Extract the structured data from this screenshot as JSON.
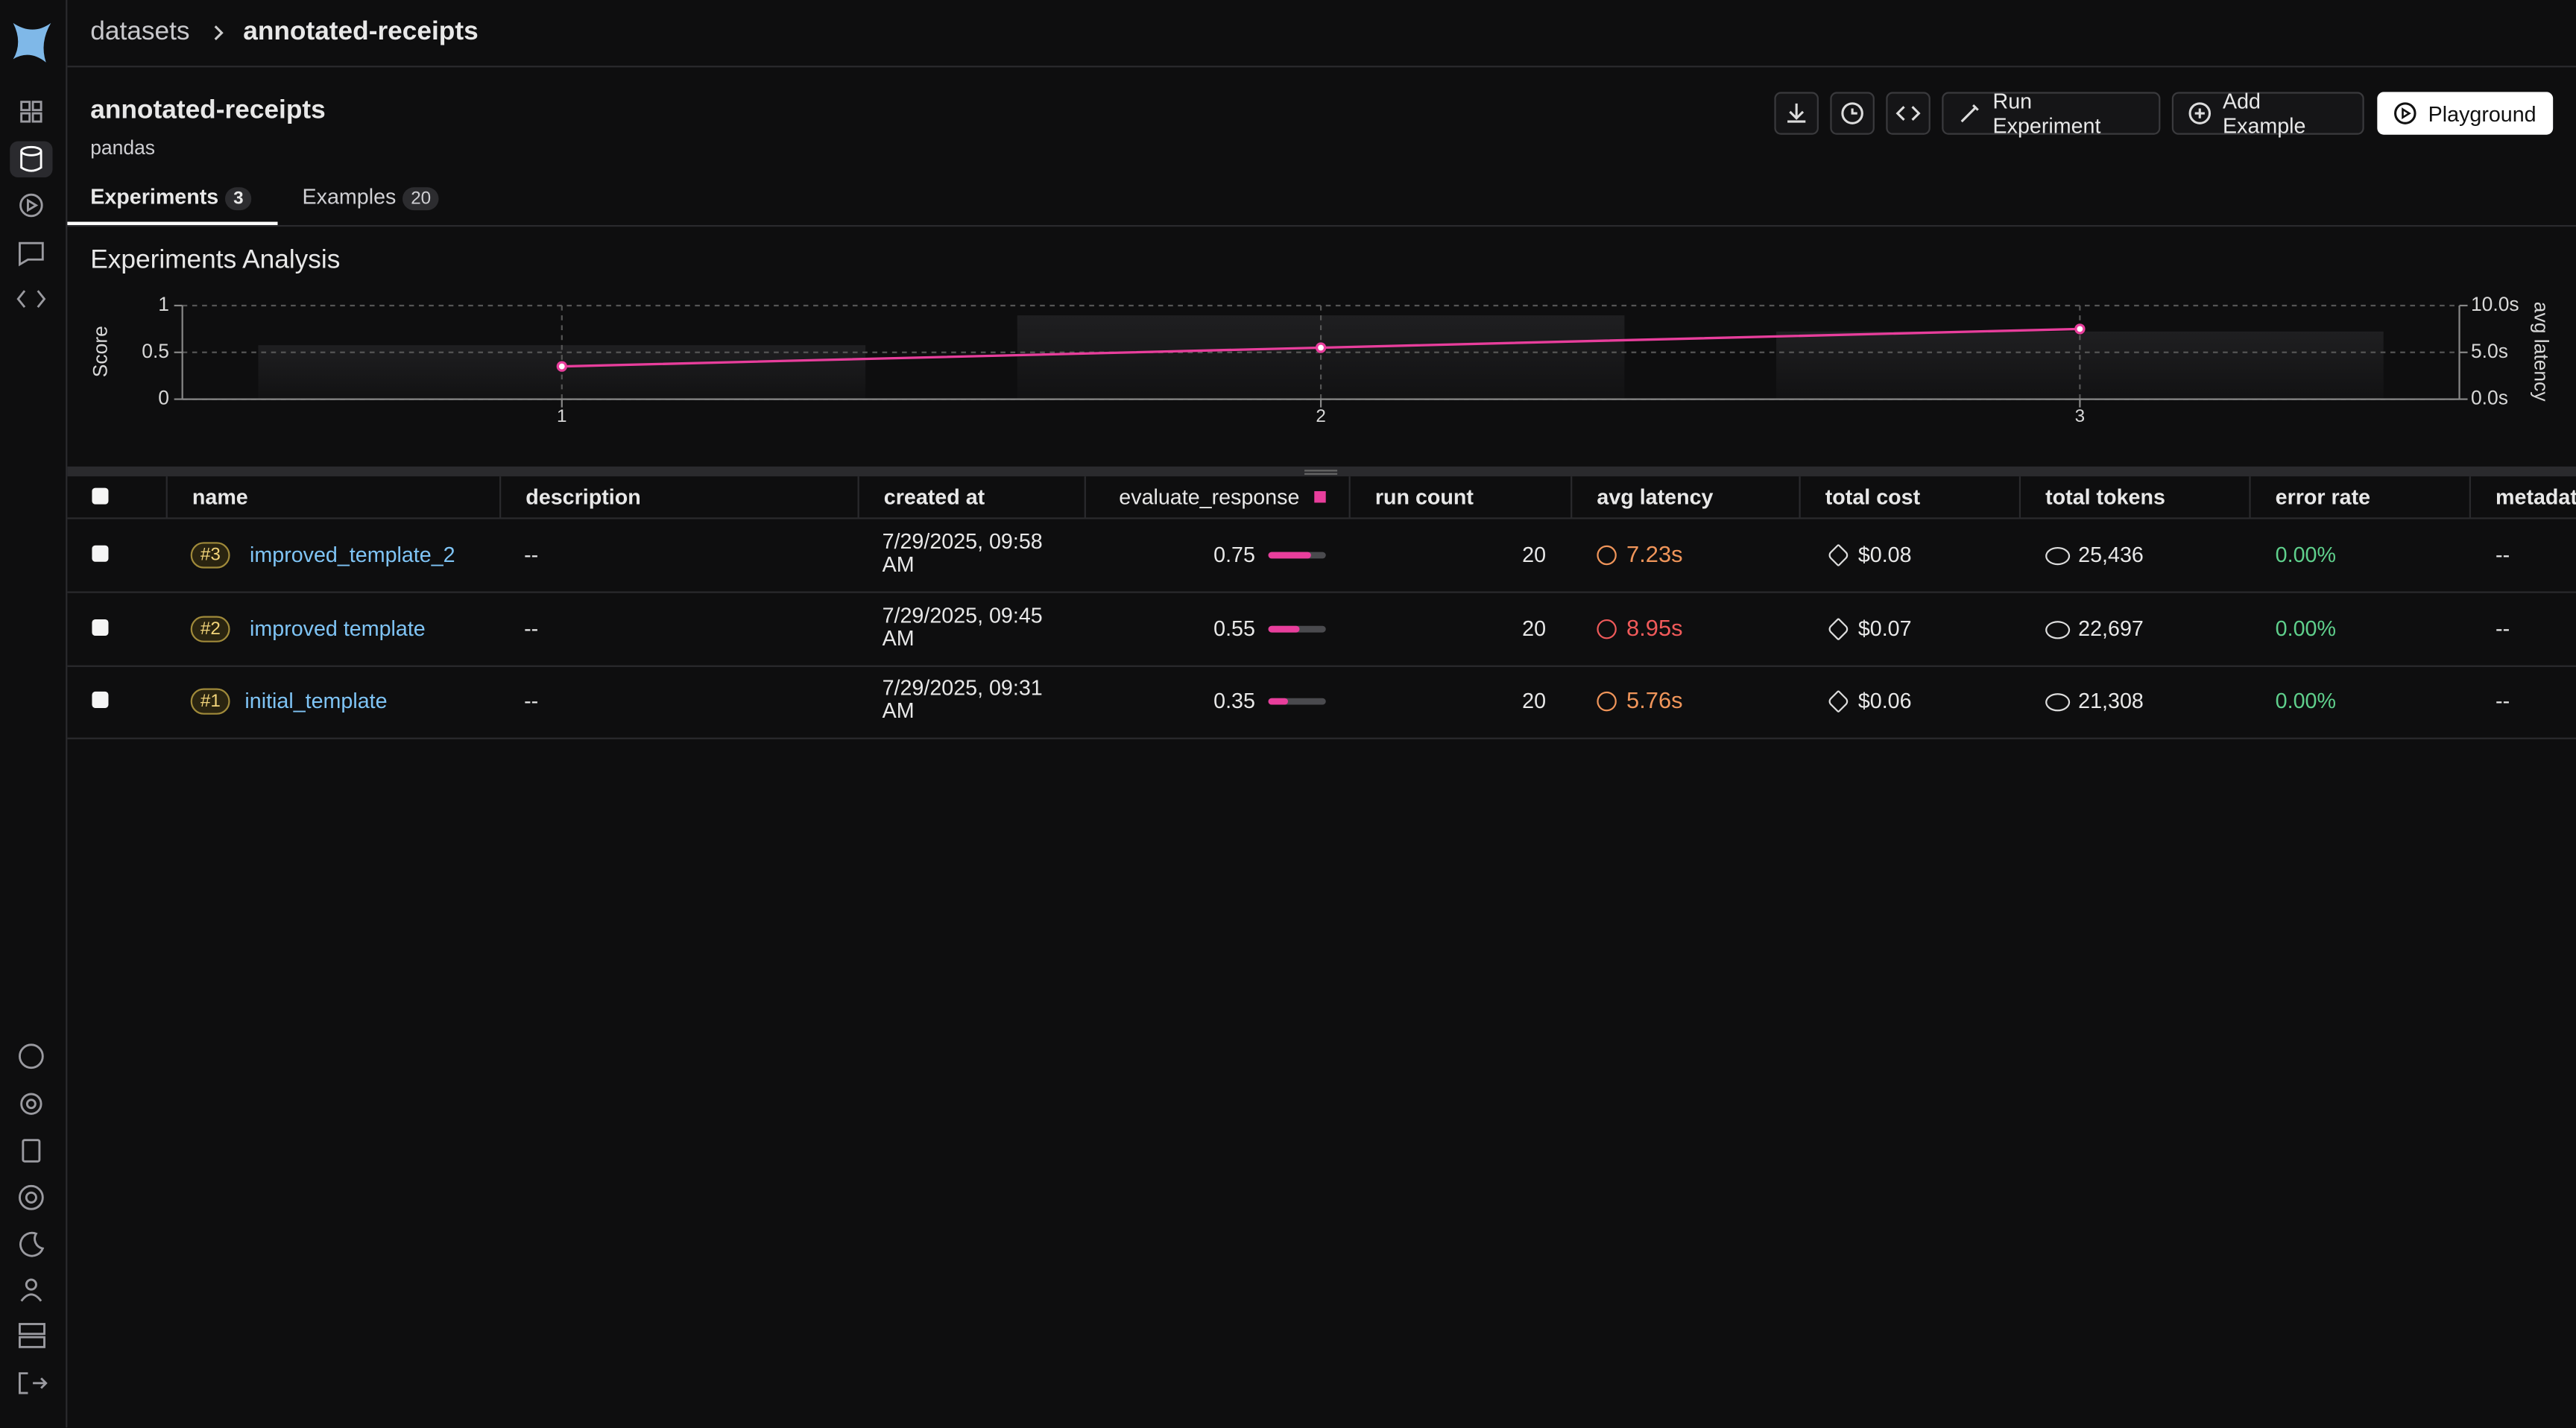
{
  "breadcrumb": {
    "parent": "datasets",
    "current": "annotated-receipts"
  },
  "header": {
    "title": "annotated-receipts",
    "subtitle": "pandas"
  },
  "actions": [
    "Run Experiment",
    "Add Example",
    "Playground"
  ],
  "tabs": [
    {
      "label": "Experiments",
      "count": 3
    },
    {
      "label": "Examples",
      "count": 20
    }
  ],
  "chart_data": {
    "type": "combo",
    "title": "Experiments Analysis",
    "x": [
      1,
      2,
      3
    ],
    "xlim": [
      0.5,
      3.5
    ],
    "xticks": [
      1,
      2,
      3
    ],
    "ylabel": "Score",
    "ylim": [
      0,
      1
    ],
    "yticks": [
      0,
      0.5,
      1
    ],
    "y2label": "avg latency",
    "y2lim": [
      0,
      10
    ],
    "y2ticks": [
      {
        "value": 0,
        "label": "0.0s"
      },
      {
        "value": 5,
        "label": "5.0s"
      },
      {
        "value": 10,
        "label": "10.0s"
      }
    ],
    "grid": true,
    "series": [
      {
        "type": "bar",
        "axis": "y2",
        "color": "#1f1f21",
        "values": [
          5.76,
          8.95,
          7.23
        ]
      },
      {
        "type": "line",
        "color": "#e83e9c",
        "values": [
          0.35,
          0.55,
          0.75
        ]
      }
    ]
  },
  "table": {
    "columns": [
      "name",
      "description",
      "created at",
      "evaluate_response",
      "run count",
      "avg latency",
      "total cost",
      "total tokens",
      "error rate",
      "metadata"
    ],
    "score_color": "#e83e9c",
    "rows": [
      {
        "rank": "#3",
        "name": "improved_template_2",
        "description": "--",
        "created_at": "7/29/2025, 09:58 AM",
        "score": 0.75,
        "run_count": 20,
        "avg_latency": "7.23s",
        "latency_color": "#f0955a",
        "total_cost": "$0.08",
        "total_tokens": "25,436",
        "error_rate": "0.00%",
        "metadata": "--"
      },
      {
        "rank": "#2",
        "name": "improved template",
        "description": "--",
        "created_at": "7/29/2025, 09:45 AM",
        "score": 0.55,
        "run_count": 20,
        "avg_latency": "8.95s",
        "latency_color": "#f05a5a",
        "total_cost": "$0.07",
        "total_tokens": "22,697",
        "error_rate": "0.00%",
        "metadata": "--"
      },
      {
        "rank": "#1",
        "name": "initial_template",
        "description": "--",
        "created_at": "7/29/2025, 09:31 AM",
        "score": 0.35,
        "run_count": 20,
        "avg_latency": "5.76s",
        "latency_color": "#f0955a",
        "total_cost": "$0.06",
        "total_tokens": "21,308",
        "error_rate": "0.00%",
        "metadata": "--"
      }
    ]
  }
}
